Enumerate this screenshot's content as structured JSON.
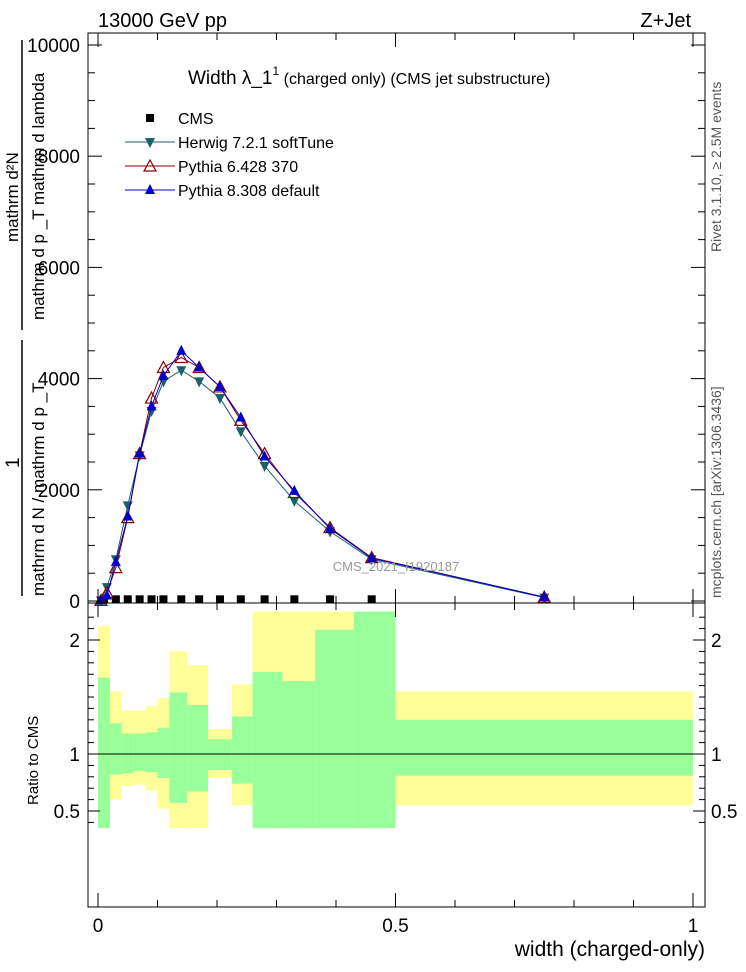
{
  "header": {
    "left_text": "13000 GeV pp",
    "right_text": "Z+Jet"
  },
  "side_text": {
    "rivet": "Rivet 3.1.10, ≥ 2.5M events",
    "mcplots": "mcplots.cern.ch [arXiv:1306.3436]"
  },
  "watermark": "CMS_2021_I1920187",
  "chart_data": [
    {
      "type": "line",
      "title": "Width λ_1",
      "title_sup": "1",
      "title_suffix": " (charged only) (CMS jet substructure)",
      "ylabel_top": "mathrm d²N",
      "ylabel_bottom": "mathrm d p _T mathrm d lambda",
      "ylabel_prefix_top": "1",
      "ylabel_prefix_bottom": "mathrm d N / mathrm d p _T",
      "xlim": [
        0,
        1
      ],
      "ylim": [
        0,
        10200
      ],
      "y_ticks": [
        0,
        2000,
        4000,
        6000,
        8000,
        10000
      ],
      "y_tick_labels": [
        "0",
        "2000",
        "4000",
        "6000",
        "8000",
        "10000"
      ],
      "legend_position": "top-left",
      "series": [
        {
          "name": "CMS",
          "marker": "square",
          "color": "#000000",
          "x": [
            0.01,
            0.03,
            0.05,
            0.07,
            0.09,
            0.11,
            0.14,
            0.17,
            0.205,
            0.24,
            0.28,
            0.33,
            0.39,
            0.46
          ],
          "y": [
            30,
            30,
            30,
            30,
            30,
            30,
            30,
            30,
            30,
            30,
            30,
            30,
            30,
            30
          ]
        },
        {
          "name": "Herwig 7.2.1 softTune",
          "marker": "triangle-down",
          "color": "#1b5f6b",
          "x": [
            0.005,
            0.015,
            0.03,
            0.05,
            0.07,
            0.09,
            0.11,
            0.14,
            0.17,
            0.205,
            0.24,
            0.28,
            0.33,
            0.39,
            0.46,
            0.75
          ],
          "y": [
            10,
            250,
            750,
            1720,
            2620,
            3420,
            3950,
            4150,
            3950,
            3650,
            3050,
            2430,
            1800,
            1250,
            750,
            60
          ]
        },
        {
          "name": "Pythia 6.428 370",
          "marker": "triangle-up-open",
          "color": "#8b0000",
          "x": [
            0.005,
            0.015,
            0.03,
            0.05,
            0.07,
            0.09,
            0.11,
            0.14,
            0.17,
            0.205,
            0.24,
            0.28,
            0.33,
            0.39,
            0.46,
            0.75
          ],
          "y": [
            10,
            150,
            600,
            1500,
            2650,
            3650,
            4200,
            4380,
            4200,
            3850,
            3250,
            2650,
            1950,
            1320,
            780,
            70
          ]
        },
        {
          "name": "Pythia 8.308 default",
          "marker": "triangle-up",
          "color": "#0000cc",
          "x": [
            0.005,
            0.015,
            0.03,
            0.05,
            0.07,
            0.09,
            0.11,
            0.14,
            0.17,
            0.205,
            0.24,
            0.28,
            0.33,
            0.39,
            0.46,
            0.75
          ],
          "y": [
            10,
            100,
            700,
            1520,
            2650,
            3500,
            4050,
            4500,
            4200,
            3850,
            3300,
            2600,
            1980,
            1300,
            770,
            70
          ]
        }
      ]
    },
    {
      "type": "area",
      "ylabel": "Ratio to CMS",
      "xlabel": "width (charged-only)",
      "xlim": [
        0,
        1
      ],
      "ylim": [
        0.35,
        2.25
      ],
      "x_ticks": [
        0,
        0.5,
        1
      ],
      "x_tick_labels": [
        "0",
        "0.5",
        "1"
      ],
      "y_ticks": [
        0.5,
        1,
        2
      ],
      "y_tick_labels": [
        "0.5",
        "1",
        "2"
      ],
      "reference_line": 1,
      "band_colors": {
        "inner": "#99ff99",
        "outer": "#ffff99"
      },
      "bands": [
        {
          "x0": 0.0,
          "x1": 0.02,
          "in_lo": 0.35,
          "in_hi": 1.67,
          "out_lo": 0.35,
          "out_hi": 2.12
        },
        {
          "x0": 0.02,
          "x1": 0.04,
          "in_lo": 0.82,
          "in_hi": 1.27,
          "out_lo": 0.6,
          "out_hi": 1.55
        },
        {
          "x0": 0.04,
          "x1": 0.06,
          "in_lo": 0.83,
          "in_hi": 1.18,
          "out_lo": 0.72,
          "out_hi": 1.38
        },
        {
          "x0": 0.06,
          "x1": 0.08,
          "in_lo": 0.85,
          "in_hi": 1.18,
          "out_lo": 0.73,
          "out_hi": 1.38
        },
        {
          "x0": 0.08,
          "x1": 0.1,
          "in_lo": 0.84,
          "in_hi": 1.19,
          "out_lo": 0.68,
          "out_hi": 1.42
        },
        {
          "x0": 0.1,
          "x1": 0.12,
          "in_lo": 0.79,
          "in_hi": 1.23,
          "out_lo": 0.52,
          "out_hi": 1.49
        },
        {
          "x0": 0.12,
          "x1": 0.15,
          "in_lo": 0.57,
          "in_hi": 1.54,
          "out_lo": 0.35,
          "out_hi": 1.9
        },
        {
          "x0": 0.15,
          "x1": 0.185,
          "in_lo": 0.67,
          "in_hi": 1.43,
          "out_lo": 0.35,
          "out_hi": 1.78
        },
        {
          "x0": 0.185,
          "x1": 0.225,
          "in_lo": 0.86,
          "in_hi": 1.13,
          "out_lo": 0.79,
          "out_hi": 1.22
        },
        {
          "x0": 0.225,
          "x1": 0.26,
          "in_lo": 0.74,
          "in_hi": 1.33,
          "out_lo": 0.55,
          "out_hi": 1.61
        },
        {
          "x0": 0.26,
          "x1": 0.31,
          "in_lo": 0.35,
          "in_hi": 1.72,
          "out_lo": 0.35,
          "out_hi": 2.25
        },
        {
          "x0": 0.31,
          "x1": 0.365,
          "in_lo": 0.35,
          "in_hi": 1.64,
          "out_lo": 0.35,
          "out_hi": 2.25
        },
        {
          "x0": 0.365,
          "x1": 0.43,
          "in_lo": 0.35,
          "in_hi": 2.09,
          "out_lo": 0.35,
          "out_hi": 2.25
        },
        {
          "x0": 0.43,
          "x1": 0.5,
          "in_lo": 0.35,
          "in_hi": 2.25,
          "out_lo": 0.35,
          "out_hi": 2.25
        },
        {
          "x0": 0.5,
          "x1": 1.0,
          "in_lo": 0.81,
          "in_hi": 1.3,
          "out_lo": 0.55,
          "out_hi": 1.55
        }
      ]
    }
  ]
}
